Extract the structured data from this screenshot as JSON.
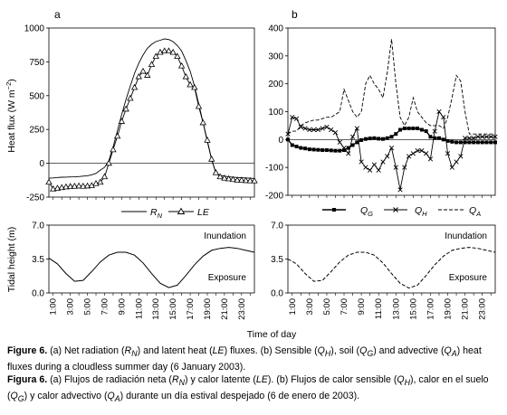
{
  "panels": {
    "a": "a",
    "b": "b"
  },
  "y_axis": {
    "heat_prefix": "Heat flux (W m",
    "heat_exp": "−2",
    "heat_suffix": ")",
    "tidal": "Tidal height (m)"
  },
  "x_axis_title": "Time of day",
  "tide_labels": {
    "inundation": "Inundation",
    "exposure": "Exposure"
  },
  "legend_a": [
    {
      "main": "R",
      "sub": "N"
    },
    {
      "main": "LE",
      "sub": ""
    }
  ],
  "legend_b": [
    {
      "main": "Q",
      "sub": "G"
    },
    {
      "main": "Q",
      "sub": "H"
    },
    {
      "main": "Q",
      "sub": "A"
    }
  ],
  "caption": {
    "en": {
      "fig": "Figure 6.",
      "a1": "(a) Net radiation (",
      "rn_main": "R",
      "rn_sub": "N",
      "a2": ") and latent heat (",
      "le": "LE",
      "a3": ") fluxes. ",
      "b1": "(b) Sensible (",
      "qh_main": "Q",
      "qh_sub": "H",
      "b2": "), soil (",
      "qg_main": "Q",
      "qg_sub": "G",
      "b3": ") and advective (",
      "qa_main": "Q",
      "qa_sub": "A",
      "b4": ") heat fluxes during a cloudless summer day (6 January 2003)."
    },
    "es": {
      "fig": "Figura 6.",
      "a1": "(a) Flujos de radiación neta (",
      "rn_main": "R",
      "rn_sub": "N",
      "a2": ") y calor latente (",
      "le": "LE",
      "a3": "). ",
      "b1": "(b) Flujos de calor sensible (",
      "qh_main": "Q",
      "qh_sub": "H",
      "b2": "), calor en el suelo (",
      "qg_main": "Q",
      "qg_sub": "G",
      "b3": ") y calor advectivo (",
      "qa_main": "Q",
      "qa_sub": "A",
      "b4": ") durante un día estival despejado (6 de enero de 2003)."
    }
  },
  "chart_data": [
    {
      "id": "a-heat",
      "type": "line",
      "panel": "a",
      "ylabel": "Heat flux (W m−2)",
      "ylim": [
        -250,
        1000
      ],
      "yticks": [
        -250,
        0,
        250,
        500,
        750,
        1000
      ],
      "x_hours": [
        0,
        0.5,
        1,
        1.5,
        2,
        2.5,
        3,
        3.5,
        4,
        4.5,
        5,
        5.5,
        6,
        6.5,
        7,
        7.5,
        8,
        8.5,
        9,
        9.5,
        10,
        10.5,
        11,
        11.5,
        12,
        12.5,
        13,
        13.5,
        14,
        14.5,
        15,
        15.5,
        16,
        16.5,
        17,
        17.5,
        18,
        18.5,
        19,
        19.5,
        20,
        20.5,
        21,
        21.5,
        22,
        22.5,
        23,
        23.5,
        24
      ],
      "series": [
        {
          "name": "RN",
          "marker": "none",
          "values": [
            -110,
            -108,
            -105,
            -103,
            -102,
            -101,
            -100,
            -98,
            -95,
            -92,
            -85,
            -75,
            -50,
            -30,
            20,
            120,
            240,
            360,
            470,
            570,
            665,
            740,
            800,
            850,
            880,
            900,
            910,
            920,
            915,
            900,
            870,
            830,
            760,
            680,
            570,
            440,
            300,
            160,
            30,
            -70,
            -90,
            -95,
            -100,
            -102,
            -105,
            -107,
            -108,
            -110,
            -112
          ]
        },
        {
          "name": "LE",
          "marker": "triangle",
          "values": [
            -140,
            -190,
            -185,
            -180,
            -175,
            -172,
            -170,
            -168,
            -170,
            -168,
            -165,
            -150,
            -140,
            -100,
            0,
            100,
            200,
            310,
            400,
            480,
            560,
            640,
            680,
            650,
            730,
            790,
            820,
            830,
            830,
            820,
            790,
            720,
            640,
            580,
            560,
            420,
            300,
            170,
            30,
            -70,
            -100,
            -110,
            -115,
            -120,
            -125,
            -125,
            -128,
            -130,
            -130
          ]
        }
      ]
    },
    {
      "id": "a-tide",
      "type": "line",
      "panel": "a",
      "xlabel": "Time of day",
      "ylabel": "Tidal height (m)",
      "ylim": [
        0,
        7
      ],
      "yticks": [
        "0.0",
        "3.5",
        "7.0"
      ],
      "x_hours": [
        0,
        1,
        2,
        3,
        4,
        5,
        6,
        7,
        8,
        9,
        10,
        11,
        12,
        13,
        14,
        15,
        16,
        17,
        18,
        19,
        20,
        21,
        22,
        23,
        24
      ],
      "series": [
        {
          "name": "Tidal height",
          "marker": "none",
          "values": [
            3.6,
            3.0,
            2.0,
            1.2,
            1.3,
            2.2,
            3.2,
            3.9,
            4.2,
            4.2,
            3.9,
            3.1,
            2.0,
            1.0,
            0.55,
            0.8,
            1.8,
            2.9,
            3.8,
            4.4,
            4.6,
            4.7,
            4.6,
            4.4,
            4.2
          ]
        }
      ]
    },
    {
      "id": "b-heat",
      "type": "line",
      "panel": "b",
      "ylim": [
        -200,
        400
      ],
      "yticks": [
        -200,
        -100,
        0,
        100,
        200,
        300,
        400
      ],
      "x_hours": [
        0,
        0.5,
        1,
        1.5,
        2,
        2.5,
        3,
        3.5,
        4,
        4.5,
        5,
        5.5,
        6,
        6.5,
        7,
        7.5,
        8,
        8.5,
        9,
        9.5,
        10,
        10.5,
        11,
        11.5,
        12,
        12.5,
        13,
        13.5,
        14,
        14.5,
        15,
        15.5,
        16,
        16.5,
        17,
        17.5,
        18,
        18.5,
        19,
        19.5,
        20,
        20.5,
        21,
        21.5,
        22,
        22.5,
        23,
        23.5,
        24
      ],
      "series": [
        {
          "name": "QG",
          "marker": "square",
          "values": [
            0,
            -20,
            -25,
            -30,
            -32,
            -35,
            -36,
            -37,
            -38,
            -38,
            -39,
            -40,
            -40,
            -38,
            -30,
            -20,
            -10,
            -2,
            2,
            4,
            5,
            3,
            2,
            5,
            10,
            20,
            35,
            40,
            40,
            40,
            40,
            35,
            30,
            10,
            5,
            5,
            0,
            -5,
            -8,
            -10,
            -10,
            -10,
            -10,
            -10,
            -10,
            -10,
            -10,
            -10,
            -10
          ]
        },
        {
          "name": "QH",
          "marker": "x",
          "values": [
            20,
            80,
            75,
            45,
            40,
            35,
            35,
            35,
            40,
            45,
            35,
            25,
            -10,
            -30,
            -50,
            10,
            40,
            -80,
            -100,
            -110,
            -90,
            -110,
            -80,
            -60,
            -30,
            -100,
            -180,
            -100,
            -60,
            -50,
            -40,
            -40,
            -50,
            -70,
            30,
            100,
            80,
            -50,
            -100,
            -80,
            -60,
            5,
            5,
            5,
            10,
            10,
            10,
            10,
            10
          ]
        },
        {
          "name": "QA",
          "marker": "none",
          "values": [
            20,
            30,
            30,
            50,
            60,
            65,
            70,
            70,
            75,
            80,
            80,
            90,
            100,
            180,
            140,
            100,
            80,
            100,
            200,
            230,
            200,
            180,
            150,
            240,
            360,
            200,
            80,
            50,
            80,
            150,
            100,
            80,
            60,
            50,
            50,
            50,
            40,
            80,
            150,
            230,
            210,
            100,
            20,
            20,
            20,
            20,
            20,
            20,
            20
          ]
        }
      ]
    },
    {
      "id": "b-tide",
      "type": "line",
      "panel": "b",
      "ylim": [
        0,
        7
      ],
      "yticks": [
        "0.0",
        "3.5",
        "7.0"
      ],
      "x_hours": [
        0,
        1,
        2,
        3,
        4,
        5,
        6,
        7,
        8,
        9,
        10,
        11,
        12,
        13,
        14,
        15,
        16,
        17,
        18,
        19,
        20,
        21,
        22,
        23,
        24
      ],
      "series": [
        {
          "name": "Tidal height",
          "marker": "none",
          "dashed": true,
          "values": [
            3.5,
            3.0,
            2.0,
            1.2,
            1.3,
            2.2,
            3.2,
            3.9,
            4.2,
            4.2,
            3.9,
            3.1,
            2.0,
            1.0,
            0.5,
            0.8,
            1.8,
            2.9,
            3.8,
            4.4,
            4.6,
            4.7,
            4.6,
            4.4,
            4.2
          ]
        }
      ]
    }
  ],
  "x_ticks": [
    "1:00",
    "3:00",
    "5:00",
    "7:00",
    "9:00",
    "11:00",
    "13:00",
    "15:00",
    "17:00",
    "19:00",
    "21:00",
    "23:00"
  ]
}
